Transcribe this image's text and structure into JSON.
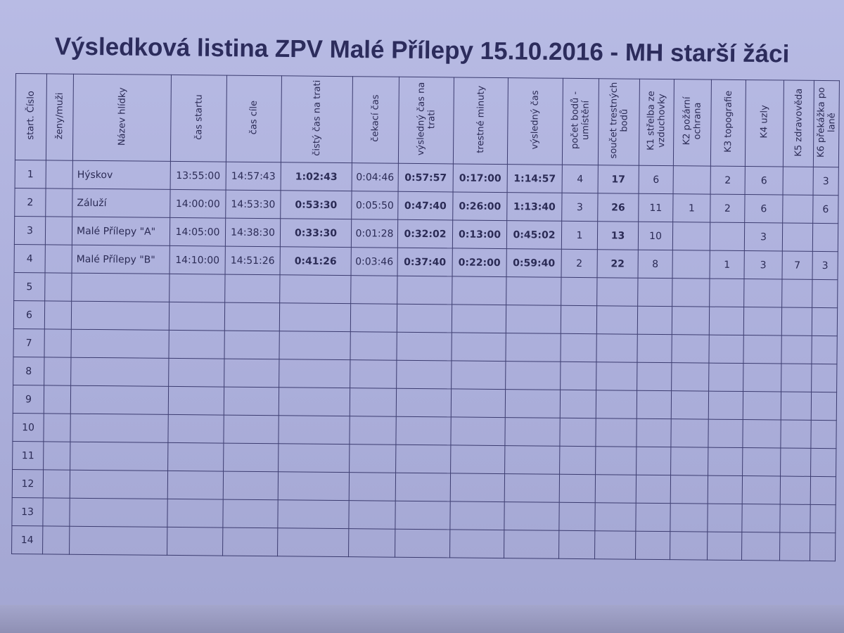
{
  "title": "Výsledková listina ZPV Malé Přílepy 15.10.2016 - MH starší žáci",
  "headers": [
    "start. Číslo",
    "ženy/muži",
    "Název hlídky",
    "čas startu",
    "čas cíle",
    "čistý čas na trati",
    "čekací čas",
    "výsledný čas na trati",
    "trestné minuty",
    "výsledný čas",
    "počet bodů - umístění",
    "součet trestných bodů",
    "K1 střelba ze vzduchovky",
    "K2 požární ochrana",
    "K3 topografie",
    "K4 uzly",
    "K5 zdravověda",
    "K6 překážka po laně"
  ],
  "rows": [
    [
      "1",
      "",
      "Hýskov",
      "13:55:00",
      "14:57:43",
      "1:02:43",
      "0:04:46",
      "0:57:57",
      "0:17:00",
      "1:14:57",
      "4",
      "17",
      "6",
      "",
      "2",
      "6",
      "",
      "3"
    ],
    [
      "2",
      "",
      "Záluží",
      "14:00:00",
      "14:53:30",
      "0:53:30",
      "0:05:50",
      "0:47:40",
      "0:26:00",
      "1:13:40",
      "3",
      "26",
      "11",
      "1",
      "2",
      "6",
      "",
      "6"
    ],
    [
      "3",
      "",
      "Malé Přílepy \"A\"",
      "14:05:00",
      "14:38:30",
      "0:33:30",
      "0:01:28",
      "0:32:02",
      "0:13:00",
      "0:45:02",
      "1",
      "13",
      "10",
      "",
      "",
      "3",
      "",
      ""
    ],
    [
      "4",
      "",
      "Malé Přílepy \"B\"",
      "14:10:00",
      "14:51:26",
      "0:41:26",
      "0:03:46",
      "0:37:40",
      "0:22:00",
      "0:59:40",
      "2",
      "22",
      "8",
      "",
      "1",
      "3",
      "7",
      "3"
    ],
    [
      "5",
      "",
      "",
      "",
      "",
      "",
      "",
      "",
      "",
      "",
      "",
      "",
      "",
      "",
      "",
      "",
      "",
      ""
    ],
    [
      "6",
      "",
      "",
      "",
      "",
      "",
      "",
      "",
      "",
      "",
      "",
      "",
      "",
      "",
      "",
      "",
      "",
      ""
    ],
    [
      "7",
      "",
      "",
      "",
      "",
      "",
      "",
      "",
      "",
      "",
      "",
      "",
      "",
      "",
      "",
      "",
      "",
      ""
    ],
    [
      "8",
      "",
      "",
      "",
      "",
      "",
      "",
      "",
      "",
      "",
      "",
      "",
      "",
      "",
      "",
      "",
      "",
      ""
    ],
    [
      "9",
      "",
      "",
      "",
      "",
      "",
      "",
      "",
      "",
      "",
      "",
      "",
      "",
      "",
      "",
      "",
      "",
      ""
    ],
    [
      "10",
      "",
      "",
      "",
      "",
      "",
      "",
      "",
      "",
      "",
      "",
      "",
      "",
      "",
      "",
      "",
      "",
      ""
    ],
    [
      "11",
      "",
      "",
      "",
      "",
      "",
      "",
      "",
      "",
      "",
      "",
      "",
      "",
      "",
      "",
      "",
      "",
      ""
    ],
    [
      "12",
      "",
      "",
      "",
      "",
      "",
      "",
      "",
      "",
      "",
      "",
      "",
      "",
      "",
      "",
      "",
      "",
      ""
    ],
    [
      "13",
      "",
      "",
      "",
      "",
      "",
      "",
      "",
      "",
      "",
      "",
      "",
      "",
      "",
      "",
      "",
      "",
      ""
    ],
    [
      "14",
      "",
      "",
      "",
      "",
      "",
      "",
      "",
      "",
      "",
      "",
      "",
      "",
      "",
      "",
      "",
      "",
      ""
    ]
  ]
}
